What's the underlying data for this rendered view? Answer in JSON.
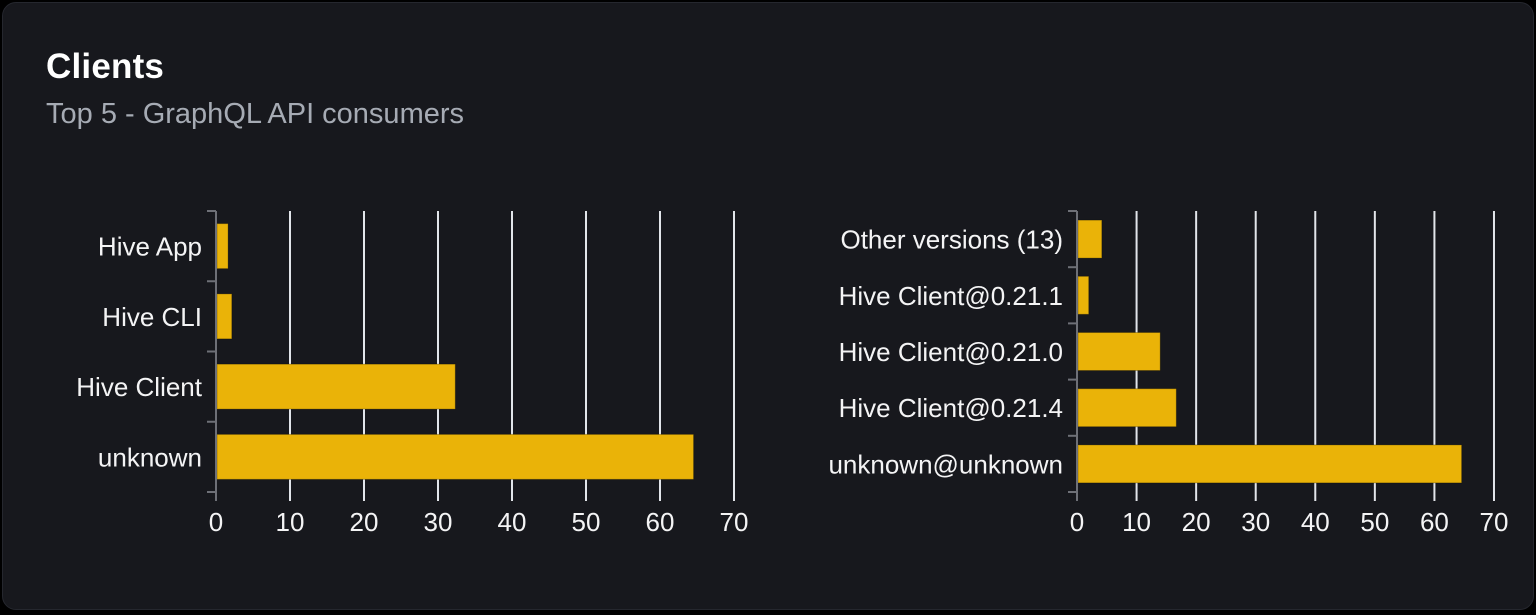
{
  "header": {
    "title": "Clients",
    "subtitle": "Top 5 - GraphQL API consumers"
  },
  "style": {
    "page_background": "#000000",
    "card_background": "#17181d",
    "bar_color": "#eab308",
    "grid_color": "#e2e5ea",
    "axis_color": "#6e7077",
    "x_tick_color": "#e2e5ea",
    "tick_label_color": "#f4f4f5",
    "category_label_color": "#f4f4f5"
  },
  "chart_data": [
    {
      "type": "bar",
      "orientation": "horizontal",
      "name": "clients",
      "categories": [
        "Hive App",
        "Hive CLI",
        "Hive Client",
        "unknown"
      ],
      "values": [
        1.5,
        2,
        32.2,
        64.4
      ],
      "xlim": [
        0,
        70
      ],
      "xticks": [
        0,
        10,
        20,
        30,
        40,
        50,
        60,
        70
      ],
      "grid": true,
      "legend": false,
      "xlabel": "",
      "ylabel": ""
    },
    {
      "type": "bar",
      "orientation": "horizontal",
      "name": "client-versions",
      "categories": [
        "Other versions (13)",
        "Hive Client@0.21.1",
        "Hive Client@0.21.0",
        "Hive Client@0.21.4",
        "unknown@unknown"
      ],
      "values": [
        4,
        1.8,
        13.8,
        16.5,
        64.4
      ],
      "xlim": [
        0,
        70
      ],
      "xticks": [
        0,
        10,
        20,
        30,
        40,
        50,
        60,
        70
      ],
      "grid": true,
      "legend": false,
      "xlabel": "",
      "ylabel": ""
    }
  ]
}
